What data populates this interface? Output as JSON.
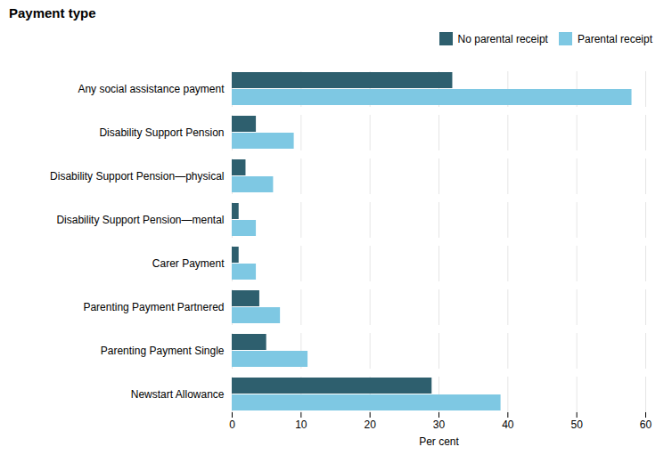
{
  "chart_data": {
    "type": "bar",
    "orientation": "horizontal",
    "title": "Payment type",
    "xlabel": "Per cent",
    "categories": [
      "Any social assistance payment",
      "Disability Support Pension",
      "Disability Support Pension—physical",
      "Disability Support Pension—mental",
      "Carer Payment",
      "Parenting Payment Partnered",
      "Parenting Payment Single",
      "Newstart Allowance"
    ],
    "series": [
      {
        "name": "No parental receipt",
        "color": "#2e5f6e",
        "values": [
          32,
          3.5,
          2,
          1,
          1,
          4,
          5,
          29
        ]
      },
      {
        "name": "Parental receipt",
        "color": "#7ec8e3",
        "values": [
          58,
          9,
          6,
          3.5,
          3.5,
          7,
          11,
          39
        ]
      }
    ],
    "xlim": [
      0,
      60
    ],
    "xticks": [
      0,
      10,
      20,
      30,
      40,
      50,
      60
    ],
    "grid": true,
    "legend": "right"
  }
}
